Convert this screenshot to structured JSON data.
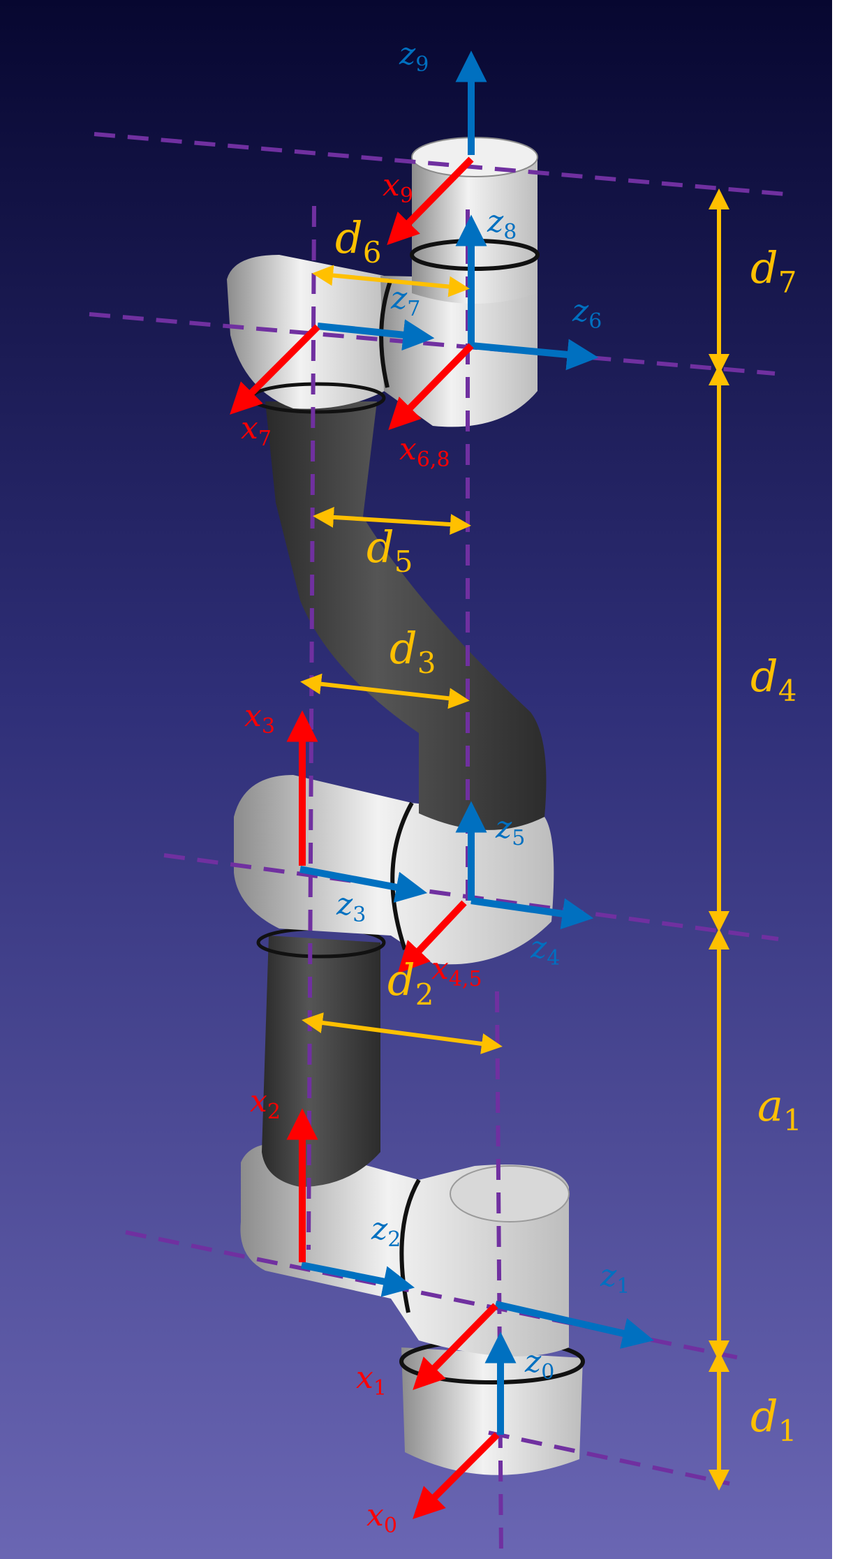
{
  "colors": {
    "background_top": "#070730",
    "background_bottom": "#6a66b3",
    "x_axis": "#ff0000",
    "z_axis": "#0070c0",
    "dimension": "#ffc000",
    "reference_line": "#7030a0",
    "link_dark": "#3a3a3a",
    "joint_light": "#e6e6e6"
  },
  "axes": {
    "z9": {
      "var": "z",
      "sub": "9"
    },
    "z8": {
      "var": "z",
      "sub": "8"
    },
    "z7": {
      "var": "z",
      "sub": "7"
    },
    "z6": {
      "var": "z",
      "sub": "6"
    },
    "z5": {
      "var": "z",
      "sub": "5"
    },
    "z4": {
      "var": "z",
      "sub": "4"
    },
    "z3": {
      "var": "z",
      "sub": "3"
    },
    "z2": {
      "var": "z",
      "sub": "2"
    },
    "z1": {
      "var": "z",
      "sub": "1"
    },
    "z0": {
      "var": "z",
      "sub": "0"
    },
    "x9": {
      "var": "x",
      "sub": "9"
    },
    "x7": {
      "var": "x",
      "sub": "7"
    },
    "x68": {
      "var": "x",
      "sub": "6,8"
    },
    "x45": {
      "var": "x",
      "sub": "4,5"
    },
    "x3": {
      "var": "x",
      "sub": "3"
    },
    "x2": {
      "var": "x",
      "sub": "2"
    },
    "x1": {
      "var": "x",
      "sub": "1"
    },
    "x0": {
      "var": "x",
      "sub": "0"
    }
  },
  "dimensions": {
    "d1": {
      "var": "d",
      "sub": "1"
    },
    "a1": {
      "var": "a",
      "sub": "1"
    },
    "d2": {
      "var": "d",
      "sub": "2"
    },
    "d3": {
      "var": "d",
      "sub": "3"
    },
    "d4": {
      "var": "d",
      "sub": "4"
    },
    "d5": {
      "var": "d",
      "sub": "5"
    },
    "d6": {
      "var": "d",
      "sub": "6"
    },
    "d7": {
      "var": "d",
      "sub": "7"
    }
  }
}
